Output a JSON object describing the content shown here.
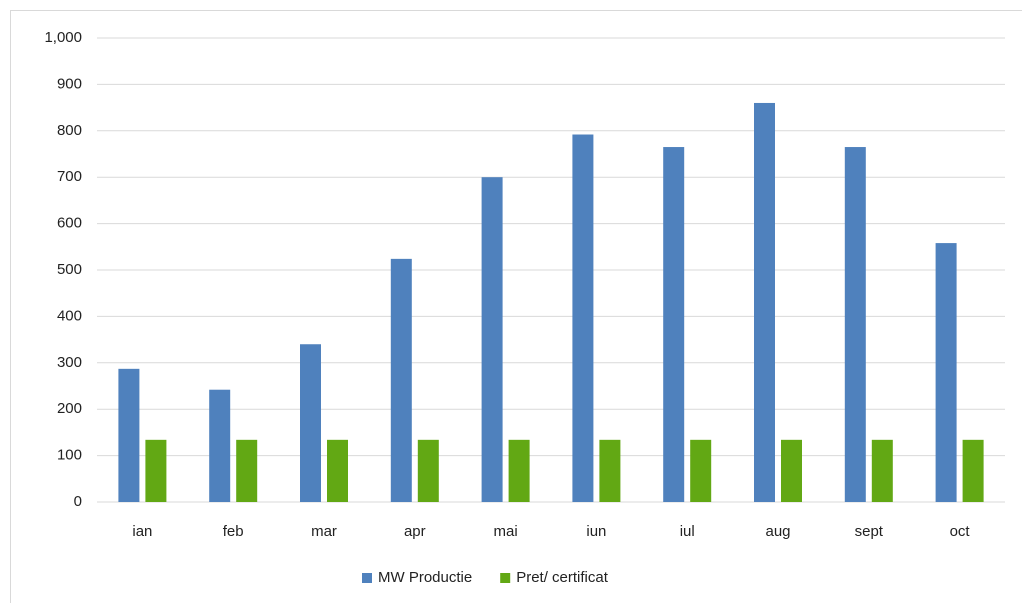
{
  "chart_data": {
    "type": "bar",
    "categories": [
      "ian",
      "feb",
      "mar",
      "apr",
      "mai",
      "iun",
      "iul",
      "aug",
      "sept",
      "oct"
    ],
    "series": [
      {
        "name": "MW Productie",
        "color": "#4f81bd",
        "values": [
          287,
          242,
          340,
          524,
          700,
          792,
          765,
          860,
          765,
          558
        ]
      },
      {
        "name": "Pret/ certificat",
        "color": "#62a814",
        "values": [
          134,
          134,
          134,
          134,
          134,
          134,
          134,
          134,
          134,
          134
        ]
      }
    ],
    "ylim": [
      0,
      1000
    ],
    "yticks": [
      0,
      100,
      200,
      300,
      400,
      500,
      600,
      700,
      800,
      900,
      {
        "value": 1000,
        "label": "1,000"
      }
    ],
    "grid": true,
    "legend": "bottom"
  }
}
